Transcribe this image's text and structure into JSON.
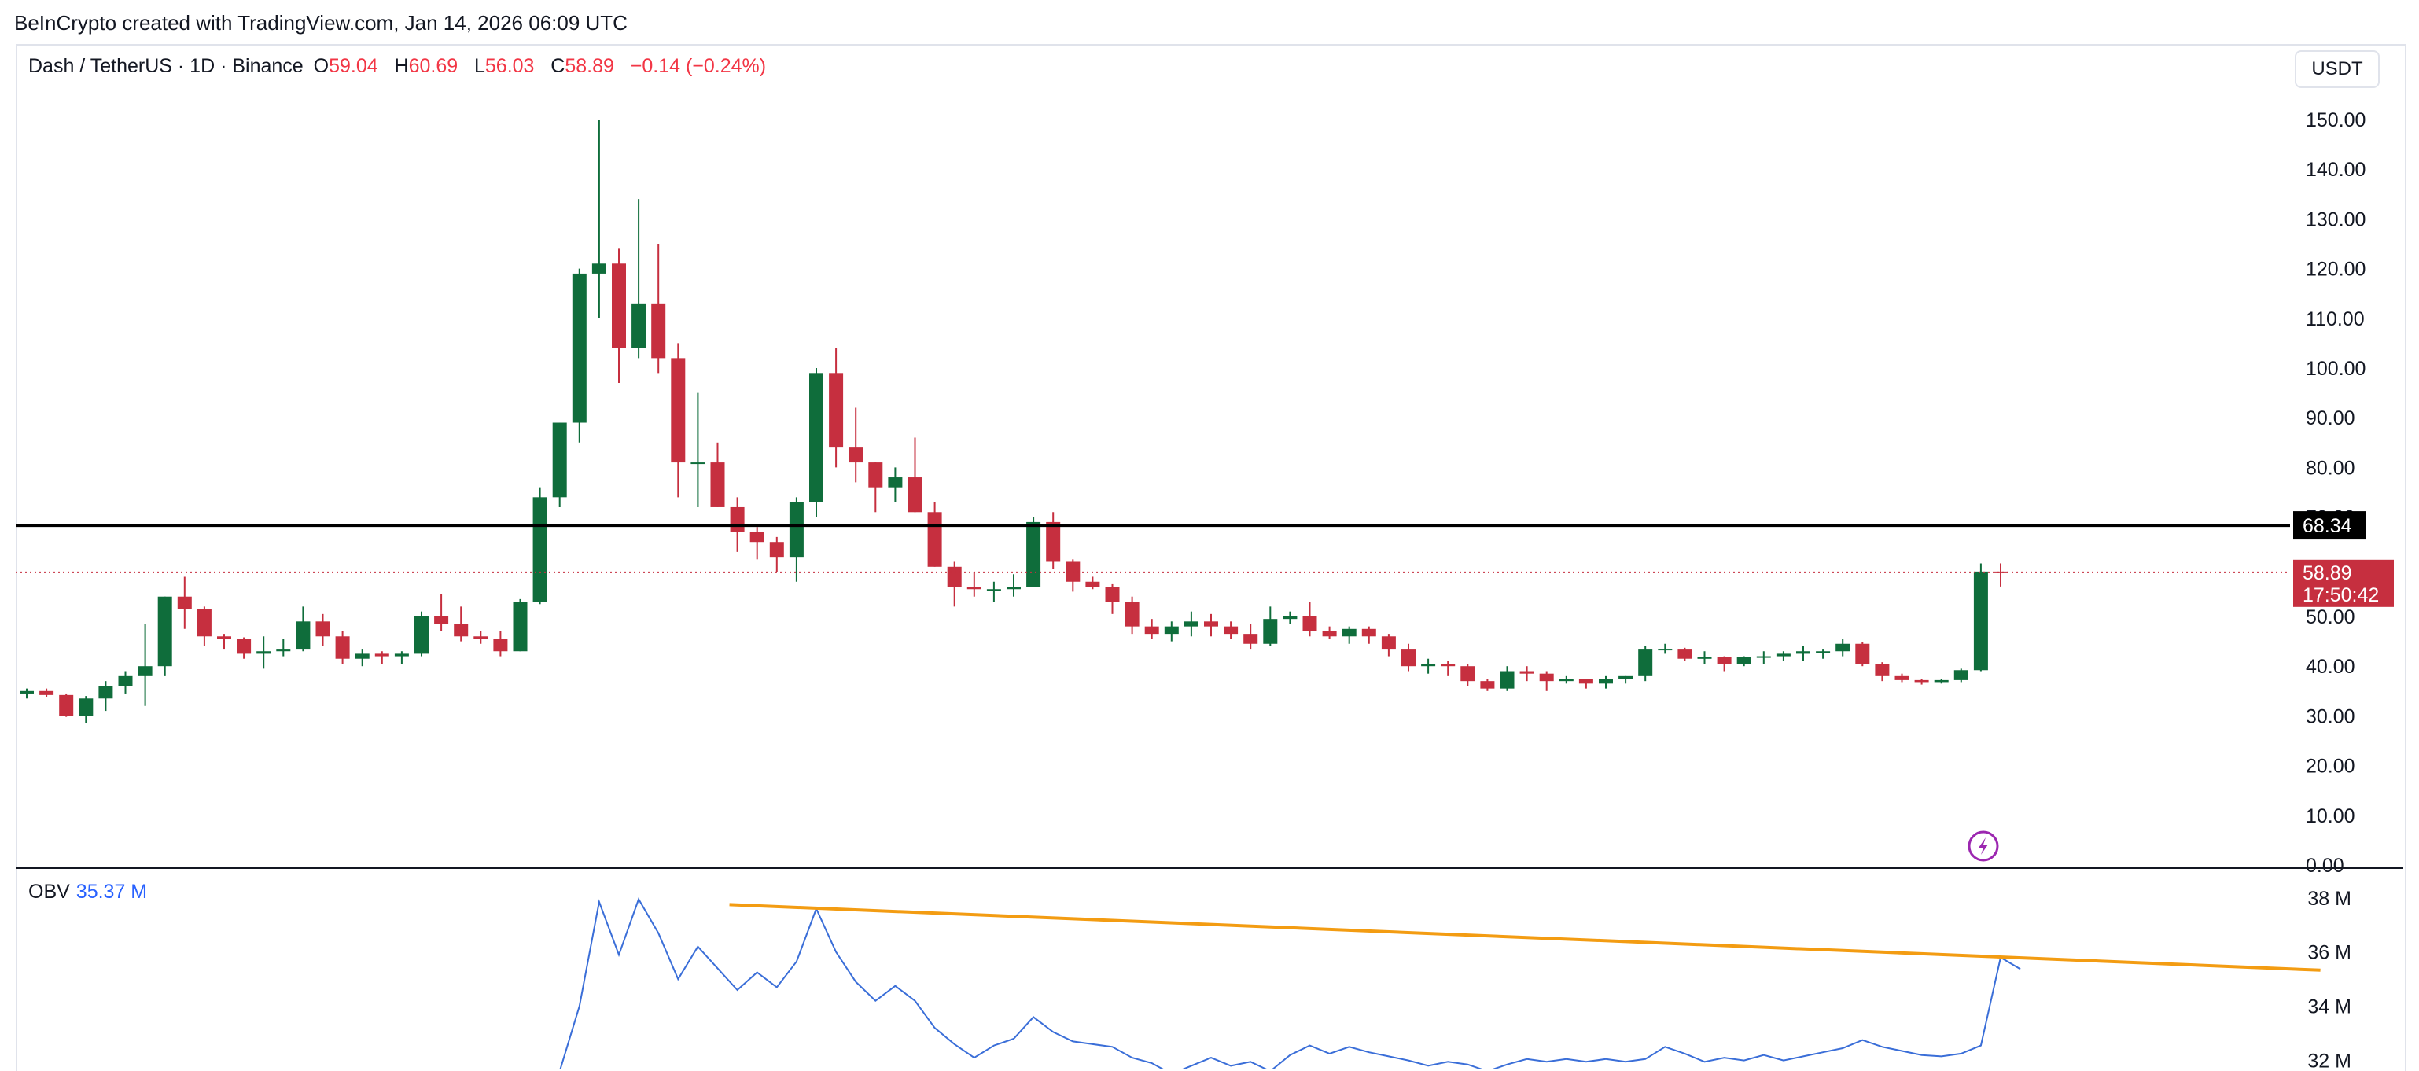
{
  "attribution": "BeInCrypto created with TradingView.com, Jan 14, 2026 06:09 UTC",
  "legend": {
    "symbol": "Dash / TetherUS · 1D · Binance",
    "o_label": "O",
    "o_value": "59.04",
    "h_label": "H",
    "h_value": "60.69",
    "l_label": "L",
    "l_value": "56.03",
    "c_label": "C",
    "c_value": "58.89",
    "change": "−0.14 (−0.24%)"
  },
  "currency": "USDT",
  "obv_legend": {
    "label": "OBV",
    "value": "35.37 M"
  },
  "colors": {
    "up": "#0f6d3b",
    "down": "#c62f3f",
    "obv": "#3a6ed8",
    "trend": "#f39c12",
    "resistance": "#000000"
  },
  "event_icon": "lightning-icon",
  "chart_data": [
    {
      "type": "candlestick",
      "ylim": [
        0,
        155
      ],
      "y_ticks": [
        "150.00",
        "140.00",
        "130.00",
        "120.00",
        "110.00",
        "100.00",
        "90.00",
        "80.00",
        "70.00",
        "60.00",
        "50.00",
        "40.00",
        "30.00",
        "20.00",
        "10.00",
        "0.00"
      ],
      "resistance": {
        "value": 68.34,
        "label": "68.34"
      },
      "last_price": {
        "value": 58.89,
        "label": "58.89",
        "countdown": "17:50:42"
      },
      "candles": [
        [
          34.5,
          35.5,
          33.5,
          35
        ],
        [
          35,
          35.5,
          33.8,
          34.2
        ],
        [
          34.2,
          34.5,
          29.8,
          30
        ],
        [
          30,
          34,
          28.5,
          33.5
        ],
        [
          33.5,
          37,
          31,
          36
        ],
        [
          36,
          39,
          34.5,
          38
        ],
        [
          38,
          48.5,
          32,
          40
        ],
        [
          40,
          54,
          38,
          54
        ],
        [
          54,
          58,
          47.5,
          51.5
        ],
        [
          51.5,
          52,
          44,
          46
        ],
        [
          46,
          46.5,
          43.5,
          45.5
        ],
        [
          45.5,
          45.8,
          41.5,
          42.5
        ],
        [
          42.5,
          46,
          39.5,
          43
        ],
        [
          43,
          45.5,
          42,
          43.5
        ],
        [
          43.5,
          52,
          43,
          49
        ],
        [
          49,
          50.5,
          44,
          46
        ],
        [
          46,
          47,
          40.5,
          41.5
        ],
        [
          41.5,
          43.5,
          40,
          42.5
        ],
        [
          42.5,
          43,
          40.5,
          42
        ],
        [
          42,
          43,
          40.5,
          42.5
        ],
        [
          42.5,
          51,
          42,
          50
        ],
        [
          50,
          54.5,
          47,
          48.5
        ],
        [
          48.5,
          52,
          45,
          46
        ],
        [
          46,
          47,
          44.5,
          45.5
        ],
        [
          45.5,
          47,
          42,
          43
        ],
        [
          43,
          53.5,
          43,
          53
        ],
        [
          53,
          76,
          52.5,
          74
        ],
        [
          74,
          89,
          72,
          89
        ],
        [
          89,
          120,
          85,
          119
        ],
        [
          119,
          150,
          110,
          121
        ],
        [
          121,
          124,
          97,
          104
        ],
        [
          104,
          134,
          102,
          113
        ],
        [
          113,
          125,
          99,
          102
        ],
        [
          102,
          105,
          74,
          81
        ],
        [
          81,
          95,
          72,
          81
        ],
        [
          81,
          85,
          72,
          72
        ],
        [
          72,
          74,
          63,
          67
        ],
        [
          67,
          68,
          61.5,
          65
        ],
        [
          65,
          66,
          59,
          62
        ],
        [
          62,
          74,
          57,
          73
        ],
        [
          73,
          100,
          70,
          99
        ],
        [
          99,
          104,
          80,
          84
        ],
        [
          84,
          92,
          77,
          81
        ],
        [
          81,
          81,
          71,
          76
        ],
        [
          76,
          80,
          73,
          78
        ],
        [
          78,
          86,
          71,
          71
        ],
        [
          71,
          73,
          60,
          60
        ],
        [
          60,
          61,
          52,
          56
        ],
        [
          56,
          59,
          54,
          55.5
        ],
        [
          55.5,
          57,
          53,
          55.5
        ],
        [
          55.5,
          58.5,
          54,
          56
        ],
        [
          56,
          70,
          56,
          69
        ],
        [
          69,
          71,
          59.5,
          61
        ],
        [
          61,
          61.5,
          55,
          57
        ],
        [
          57,
          58,
          55.5,
          56
        ],
        [
          56,
          56.5,
          50.5,
          53
        ],
        [
          53,
          54,
          46.5,
          48
        ],
        [
          48,
          49.5,
          45.5,
          46.5
        ],
        [
          46.5,
          49,
          45,
          48
        ],
        [
          48,
          51,
          46,
          49
        ],
        [
          49,
          50.5,
          46,
          48
        ],
        [
          48,
          49,
          45.5,
          46.5
        ],
        [
          46.5,
          48.5,
          43.5,
          44.5
        ],
        [
          44.5,
          52,
          44,
          49.5
        ],
        [
          49.5,
          51,
          48.5,
          50
        ],
        [
          50,
          53,
          46,
          47
        ],
        [
          47,
          48,
          45.5,
          46
        ],
        [
          46,
          48,
          44.5,
          47.5
        ],
        [
          47.5,
          48,
          44.5,
          46
        ],
        [
          46,
          46.5,
          42,
          43.5
        ],
        [
          43.5,
          44.5,
          39,
          40
        ],
        [
          40,
          41.5,
          38.5,
          40.5
        ],
        [
          40.5,
          41,
          38,
          40
        ],
        [
          40,
          40.5,
          36,
          37
        ],
        [
          37,
          37.5,
          35,
          35.5
        ],
        [
          35.5,
          40,
          35,
          39
        ],
        [
          39,
          40,
          37,
          38.5
        ],
        [
          38.5,
          39,
          35,
          37
        ],
        [
          37,
          38,
          36.5,
          37.5
        ],
        [
          37.5,
          37.5,
          35.5,
          36.5
        ],
        [
          36.5,
          38,
          35.5,
          37.5
        ],
        [
          37.5,
          38,
          36.5,
          38
        ],
        [
          38,
          44,
          37,
          43.5
        ],
        [
          43.5,
          44.5,
          42.5,
          43.5
        ],
        [
          43.5,
          43.7,
          41,
          41.5
        ],
        [
          41.5,
          43,
          40.5,
          41.8
        ],
        [
          41.8,
          42,
          39,
          40.5
        ],
        [
          40.5,
          42,
          40,
          41.8
        ],
        [
          41.8,
          43,
          40.5,
          42
        ],
        [
          42,
          43,
          41,
          42.5
        ],
        [
          42.5,
          44,
          41,
          43
        ],
        [
          43,
          43.5,
          41.5,
          43
        ],
        [
          43,
          45.5,
          42,
          44.5
        ],
        [
          44.5,
          44.8,
          40,
          40.5
        ],
        [
          40.5,
          40.8,
          37,
          38
        ],
        [
          38,
          38.5,
          36.8,
          37.2
        ],
        [
          37.2,
          37.5,
          36.3,
          36.8
        ],
        [
          36.8,
          37.5,
          36.5,
          37.2
        ],
        [
          37.2,
          39.5,
          36.8,
          39.2
        ],
        [
          39.2,
          60.69,
          39,
          59.04
        ],
        [
          59.04,
          60.69,
          56.03,
          58.89
        ]
      ]
    },
    {
      "type": "line",
      "name": "OBV",
      "ylim": [
        31.9,
        38.4
      ],
      "y_ticks": [
        "38 M",
        "36 M",
        "34 M",
        "32 M"
      ],
      "values": [
        31.6,
        31.6,
        31.6,
        31.6,
        31.6,
        31.6,
        31.6,
        31.6,
        31.6,
        31.6,
        31.6,
        31.6,
        31.6,
        31.6,
        31.6,
        31.6,
        31.6,
        31.6,
        31.6,
        31.6,
        31.6,
        31.6,
        31.6,
        31.6,
        31.6,
        31.6,
        31.6,
        31.6,
        34.0,
        37.85,
        35.9,
        37.95,
        36.7,
        35.0,
        36.2,
        35.4,
        34.6,
        35.25,
        34.7,
        35.65,
        37.6,
        36.0,
        34.9,
        34.2,
        34.75,
        34.2,
        33.2,
        32.6,
        32.1,
        32.55,
        32.8,
        33.6,
        33.05,
        32.7,
        32.6,
        32.5,
        32.1,
        31.9,
        31.5,
        31.8,
        32.1,
        31.8,
        31.95,
        31.6,
        32.2,
        32.55,
        32.25,
        32.5,
        32.3,
        32.15,
        32.0,
        31.8,
        31.95,
        31.85,
        31.6,
        31.85,
        32.05,
        31.95,
        32.05,
        31.95,
        32.05,
        31.95,
        32.05,
        32.5,
        32.25,
        31.95,
        32.1,
        32.0,
        32.2,
        32.0,
        32.15,
        32.3,
        32.45,
        32.75,
        32.5,
        32.35,
        32.2,
        32.15,
        32.25,
        32.55,
        35.8,
        35.37
      ],
      "trendline": {
        "from": [
          35.6,
          37.75
        ],
        "to": [
          116.2,
          35.33
        ]
      }
    }
  ]
}
